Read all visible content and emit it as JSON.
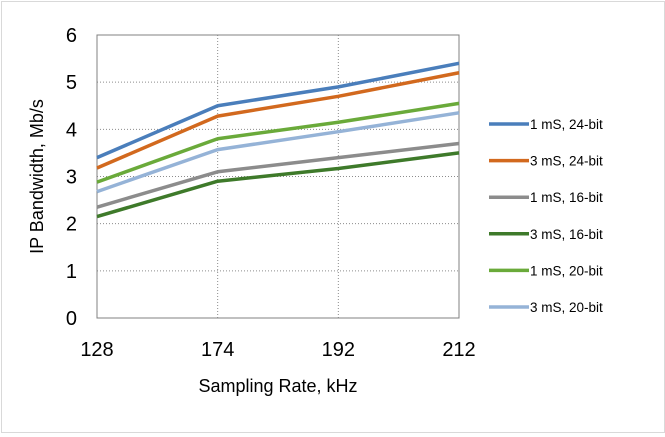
{
  "chart_data": {
    "type": "line",
    "title": "",
    "xlabel": "Sampling Rate, kHz",
    "ylabel": "IP Bandwidth, Mb/s",
    "categories": [
      "128",
      "174",
      "192",
      "212"
    ],
    "ylim": [
      0,
      6
    ],
    "yticks": [
      "0",
      "1",
      "2",
      "3",
      "4",
      "5",
      "6"
    ],
    "grid": "major-y dotted, boxed plot area",
    "legend_position": "right",
    "series": [
      {
        "name": "1 mS, 24-bit",
        "color": "#4a7ebb",
        "values": [
          3.4,
          4.5,
          4.9,
          5.4
        ]
      },
      {
        "name": "3 mS, 24-bit",
        "color": "#d2691e",
        "values": [
          3.18,
          4.28,
          4.7,
          5.2
        ]
      },
      {
        "name": "1 mS, 16-bit",
        "color": "#8c8c8c",
        "values": [
          2.35,
          3.1,
          3.4,
          3.7
        ]
      },
      {
        "name": "3 mS, 16-bit",
        "color": "#3e7a2a",
        "values": [
          2.15,
          2.9,
          3.17,
          3.5
        ]
      },
      {
        "name": "1 mS, 20-bit",
        "color": "#6aaa3a",
        "values": [
          2.88,
          3.8,
          4.15,
          4.55
        ]
      },
      {
        "name": "3 mS, 20-bit",
        "color": "#95b3d7",
        "values": [
          2.68,
          3.57,
          3.95,
          4.35
        ]
      }
    ]
  }
}
